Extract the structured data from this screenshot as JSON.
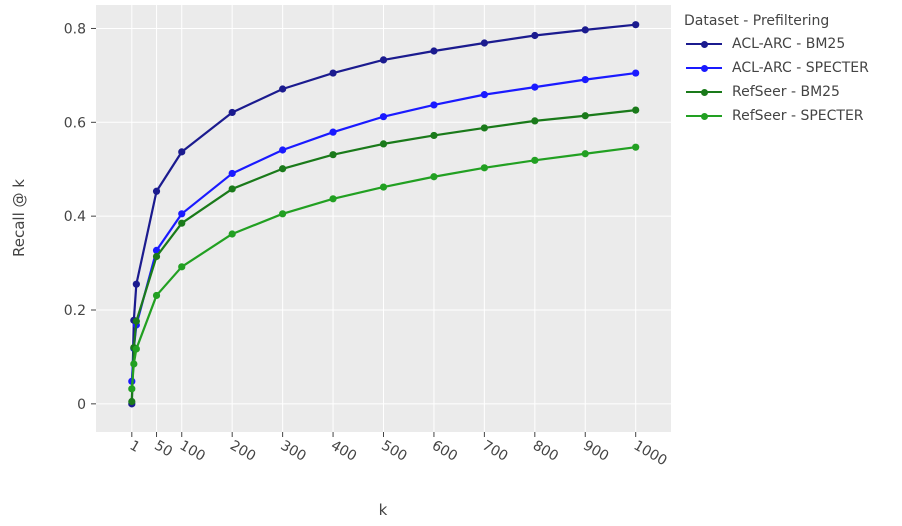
{
  "chart_data": {
    "type": "line",
    "title": "",
    "xlabel": "k",
    "ylabel": "Recall @ k",
    "x": [
      1,
      5,
      10,
      50,
      100,
      200,
      300,
      400,
      500,
      600,
      700,
      800,
      900,
      1000
    ],
    "xticks": [
      1,
      50,
      100,
      200,
      300,
      400,
      500,
      600,
      700,
      800,
      900,
      1000
    ],
    "xlim": [
      -70,
      1070
    ],
    "yticks": [
      0,
      0.2,
      0.4,
      0.6,
      0.8
    ],
    "ytick_labels": [
      "0",
      "0.2",
      "0.4",
      "0.6",
      "0.8"
    ],
    "ylim": [
      -0.06,
      0.85
    ],
    "grid": true,
    "legend_title": "Dataset - Prefiltering",
    "legend_position": "top-right outside",
    "background": "#ebebeb",
    "series": [
      {
        "name": "ACL-ARC - BM25",
        "color": "#1b1b8f",
        "values": [
          0.0,
          0.178,
          0.255,
          0.453,
          0.537,
          0.621,
          0.671,
          0.705,
          0.733,
          0.752,
          0.769,
          0.785,
          0.797,
          0.808
        ]
      },
      {
        "name": "ACL-ARC - SPECTER",
        "color": "#1a1aff",
        "values": [
          0.048,
          0.118,
          0.168,
          0.327,
          0.405,
          0.491,
          0.541,
          0.579,
          0.612,
          0.637,
          0.659,
          0.675,
          0.691,
          0.705
        ]
      },
      {
        "name": "RefSeer - BM25",
        "color": "#1a7a1a",
        "values": [
          0.005,
          0.12,
          0.176,
          0.314,
          0.385,
          0.458,
          0.501,
          0.531,
          0.554,
          0.572,
          0.588,
          0.603,
          0.614,
          0.626
        ]
      },
      {
        "name": "RefSeer - SPECTER",
        "color": "#22a022",
        "values": [
          0.032,
          0.085,
          0.117,
          0.231,
          0.292,
          0.362,
          0.405,
          0.437,
          0.462,
          0.484,
          0.503,
          0.519,
          0.533,
          0.547
        ]
      }
    ]
  }
}
